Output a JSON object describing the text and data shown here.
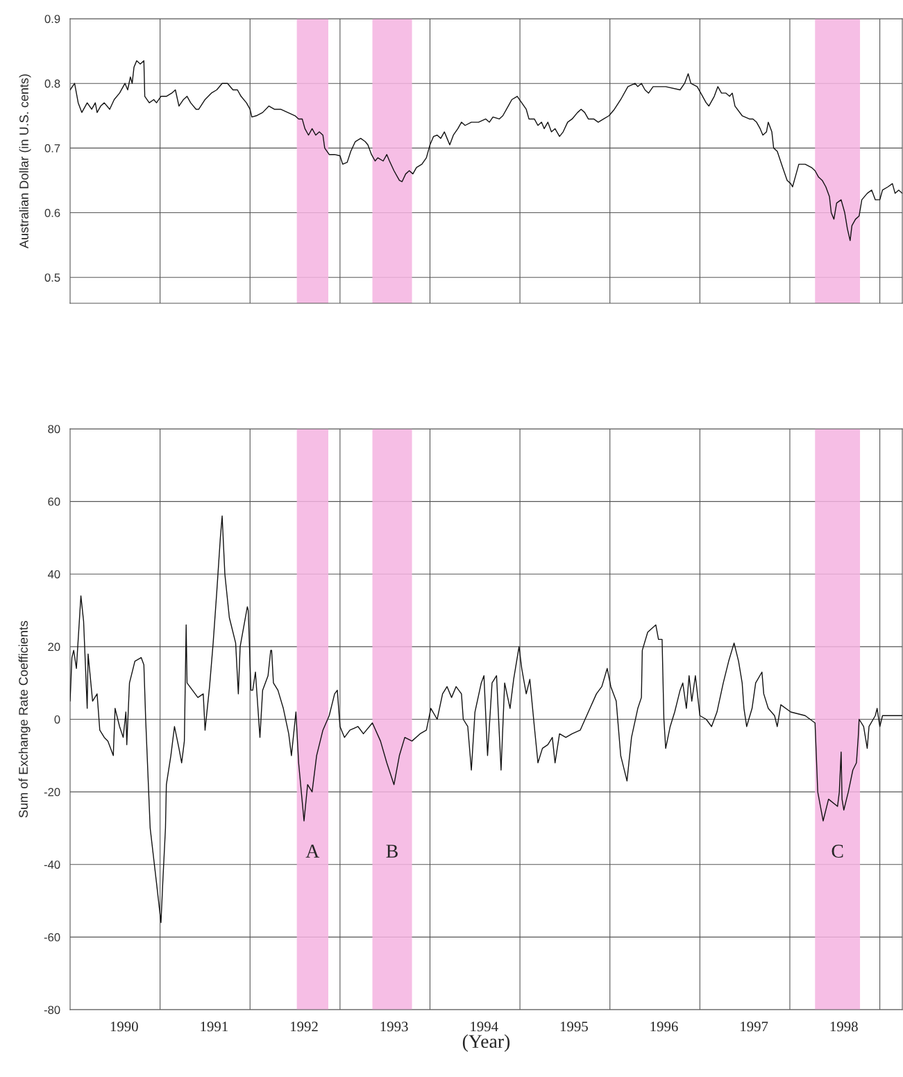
{
  "chart_data": [
    {
      "type": "line",
      "ylabel": "Australian Dollar (in U.S. cents)",
      "x": [
        1989.4,
        1989.45,
        1989.49,
        1989.53,
        1989.59,
        1989.64,
        1989.68,
        1989.7,
        1989.74,
        1989.78,
        1989.84,
        1989.89,
        1989.95,
        1990.01,
        1990.04,
        1990.07,
        1990.09,
        1990.11,
        1990.14,
        1990.18,
        1990.22,
        1990.23,
        1990.28,
        1990.33,
        1990.36,
        1990.41,
        1990.47,
        1990.53,
        1990.57,
        1990.61,
        1990.66,
        1990.7,
        1990.74,
        1990.8,
        1990.83,
        1990.9,
        1990.97,
        1991.03,
        1991.09,
        1991.15,
        1991.21,
        1991.26,
        1991.3,
        1991.36,
        1991.4,
        1991.42,
        1991.47,
        1991.54,
        1991.61,
        1991.67,
        1991.74,
        1991.82,
        1991.9,
        1991.94,
        1991.98,
        1992.01,
        1992.05,
        1992.09,
        1992.13,
        1992.17,
        1992.21,
        1992.23,
        1992.28,
        1992.34,
        1992.4,
        1992.43,
        1992.48,
        1992.52,
        1992.57,
        1992.63,
        1992.68,
        1992.71,
        1992.75,
        1992.79,
        1992.82,
        1992.88,
        1992.92,
        1992.95,
        1993.0,
        1993.06,
        1993.09,
        1993.13,
        1993.17,
        1993.21,
        1993.25,
        1993.31,
        1993.36,
        1993.4,
        1993.44,
        1993.48,
        1993.52,
        1993.56,
        1993.59,
        1993.62,
        1993.66,
        1993.71,
        1993.75,
        1993.79,
        1993.86,
        1993.94,
        1994.02,
        1994.06,
        1994.1,
        1994.17,
        1994.21,
        1994.27,
        1994.31,
        1994.37,
        1994.42,
        1994.47,
        1994.5,
        1994.56,
        1994.6,
        1994.64,
        1994.67,
        1994.71,
        1994.75,
        1994.79,
        1994.84,
        1994.88,
        1994.93,
        1994.98,
        1995.04,
        1995.08,
        1995.12,
        1995.16,
        1995.22,
        1995.27,
        1995.33,
        1995.39,
        1995.45,
        1995.52,
        1995.6,
        1995.68,
        1995.71,
        1995.75,
        1995.79,
        1995.83,
        1995.88,
        1995.95,
        1996.02,
        1996.18,
        1996.23,
        1996.27,
        1996.3,
        1996.37,
        1996.41,
        1996.47,
        1996.5,
        1996.56,
        1996.6,
        1996.64,
        1996.69,
        1996.73,
        1996.76,
        1996.79,
        1996.87,
        1996.95,
        1996.99,
        1997.03,
        1997.07,
        1997.1,
        1997.14,
        1997.16,
        1997.2,
        1997.22,
        1997.26,
        1997.32,
        1997.37,
        1997.41,
        1997.43,
        1997.47,
        1997.5,
        1997.57,
        1997.64,
        1997.68,
        1997.72,
        1997.76,
        1997.8,
        1997.84,
        1997.86,
        1997.89,
        1997.92,
        1997.97,
        1998.01,
        1998.04,
        1998.07,
        1998.09,
        1998.13,
        1998.17,
        1998.2,
        1998.26,
        1998.31,
        1998.35,
        1998.4,
        1998.43,
        1998.49,
        1998.54,
        1998.57,
        1998.61,
        1998.65
      ],
      "series": [
        {
          "color": "#111111",
          "values": [
            0.79,
            0.8,
            0.77,
            0.755,
            0.77,
            0.76,
            0.77,
            0.755,
            0.765,
            0.77,
            0.76,
            0.775,
            0.785,
            0.8,
            0.79,
            0.81,
            0.8,
            0.825,
            0.835,
            0.83,
            0.835,
            0.78,
            0.77,
            0.775,
            0.77,
            0.78,
            0.78,
            0.785,
            0.79,
            0.765,
            0.775,
            0.78,
            0.77,
            0.76,
            0.76,
            0.775,
            0.785,
            0.79,
            0.8,
            0.8,
            0.79,
            0.79,
            0.78,
            0.77,
            0.76,
            0.748,
            0.75,
            0.755,
            0.765,
            0.76,
            0.76,
            0.755,
            0.75,
            0.745,
            0.745,
            0.73,
            0.72,
            0.73,
            0.72,
            0.725,
            0.72,
            0.7,
            0.69,
            0.69,
            0.688,
            0.675,
            0.678,
            0.695,
            0.71,
            0.715,
            0.71,
            0.705,
            0.69,
            0.68,
            0.685,
            0.68,
            0.69,
            0.68,
            0.665,
            0.65,
            0.648,
            0.66,
            0.665,
            0.66,
            0.67,
            0.675,
            0.685,
            0.705,
            0.718,
            0.72,
            0.715,
            0.725,
            0.715,
            0.705,
            0.72,
            0.73,
            0.74,
            0.735,
            0.74,
            0.74,
            0.745,
            0.74,
            0.748,
            0.745,
            0.75,
            0.765,
            0.775,
            0.78,
            0.77,
            0.76,
            0.745,
            0.745,
            0.735,
            0.74,
            0.73,
            0.74,
            0.725,
            0.73,
            0.718,
            0.725,
            0.74,
            0.745,
            0.755,
            0.76,
            0.755,
            0.745,
            0.745,
            0.74,
            0.745,
            0.75,
            0.76,
            0.775,
            0.795,
            0.8,
            0.795,
            0.8,
            0.79,
            0.785,
            0.795,
            0.795,
            0.795,
            0.79,
            0.8,
            0.815,
            0.8,
            0.795,
            0.785,
            0.77,
            0.765,
            0.78,
            0.795,
            0.785,
            0.785,
            0.78,
            0.785,
            0.765,
            0.75,
            0.745,
            0.745,
            0.74,
            0.73,
            0.72,
            0.725,
            0.74,
            0.725,
            0.7,
            0.695,
            0.67,
            0.65,
            0.645,
            0.64,
            0.66,
            0.675,
            0.675,
            0.67,
            0.665,
            0.655,
            0.65,
            0.64,
            0.625,
            0.6,
            0.59,
            0.615,
            0.62,
            0.6,
            0.575,
            0.557,
            0.58,
            0.59,
            0.595,
            0.62,
            0.63,
            0.635,
            0.62,
            0.62,
            0.635,
            0.64,
            0.645,
            0.63,
            0.635,
            0.63
          ]
        }
      ],
      "xlim": [
        1989.4,
        1998.65
      ],
      "xticks": [
        1990,
        {
          "value": 1990.4,
          "label": null
        },
        1991,
        {
          "value": 1991.4,
          "label": null
        },
        1992,
        {
          "value": 1992.4,
          "label": null
        },
        1993,
        {
          "value": 1993.4,
          "label": null
        },
        1994,
        {
          "value": 1994.4,
          "label": null
        },
        1995,
        {
          "value": 1995.4,
          "label": null
        },
        1996,
        {
          "value": 1996.4,
          "label": null
        },
        1997,
        {
          "value": 1997.4,
          "label": null
        },
        1998,
        {
          "value": 1998.4,
          "label": null
        }
      ],
      "ylim": [
        0.46,
        0.9
      ],
      "yticks": [
        0.5,
        0.6,
        0.7,
        0.8,
        0.9
      ],
      "grid": true,
      "tick_labels": "y",
      "bands": [
        {
          "axis": "x",
          "from": 1991.92,
          "to": 1992.27,
          "color": "#f5b3e0"
        },
        {
          "axis": "x",
          "from": 1992.76,
          "to": 1993.2,
          "color": "#f5b3e0"
        },
        {
          "axis": "x",
          "from": 1997.68,
          "to": 1998.18,
          "color": "#f5b3e0"
        }
      ]
    },
    {
      "type": "line",
      "ylabel": "Sum of Exchange Rate Coefficients",
      "xlabel": "(Year)",
      "x": [
        1989.4,
        1989.42,
        1989.44,
        1989.47,
        1989.52,
        1989.55,
        1989.59,
        1989.6,
        1989.65,
        1989.7,
        1989.73,
        1989.78,
        1989.82,
        1989.88,
        1989.9,
        1989.95,
        1989.99,
        1990.02,
        1990.03,
        1990.06,
        1990.12,
        1990.19,
        1990.22,
        1990.24,
        1990.29,
        1990.36,
        1990.41,
        1990.43,
        1990.46,
        1990.47,
        1990.52,
        1990.56,
        1990.61,
        1990.64,
        1990.67,
        1990.69,
        1990.7,
        1990.76,
        1990.82,
        1990.88,
        1990.9,
        1990.95,
        1990.99,
        1991.03,
        1991.07,
        1991.09,
        1991.12,
        1991.17,
        1991.24,
        1991.27,
        1991.29,
        1991.37,
        1991.38,
        1991.41,
        1991.43,
        1991.46,
        1991.51,
        1991.54,
        1991.6,
        1991.63,
        1991.64,
        1991.66,
        1991.71,
        1991.77,
        1991.83,
        1991.86,
        1991.91,
        1991.94,
        1992.0,
        1992.04,
        1992.09,
        1992.14,
        1992.21,
        1992.28,
        1992.34,
        1992.37,
        1992.4,
        1992.45,
        1992.51,
        1992.6,
        1992.66,
        1992.76,
        1992.85,
        1992.92,
        1993.0,
        1993.06,
        1993.12,
        1993.2,
        1993.29,
        1993.36,
        1993.41,
        1993.48,
        1993.54,
        1993.59,
        1993.64,
        1993.69,
        1993.75,
        1993.77,
        1993.82,
        1993.86,
        1993.9,
        1993.97,
        1994.0,
        1994.04,
        1994.09,
        1994.14,
        1994.19,
        1994.23,
        1994.29,
        1994.33,
        1994.39,
        1994.42,
        1994.47,
        1994.51,
        1994.56,
        1994.6,
        1994.65,
        1994.71,
        1994.76,
        1994.79,
        1994.84,
        1994.91,
        1994.98,
        1995.07,
        1995.16,
        1995.25,
        1995.31,
        1995.37,
        1995.41,
        1995.47,
        1995.52,
        1995.59,
        1995.64,
        1995.71,
        1995.75,
        1995.76,
        1995.82,
        1995.91,
        1995.94,
        1995.98,
        1996.0,
        1996.02,
        1996.07,
        1996.12,
        1996.18,
        1996.21,
        1996.25,
        1996.28,
        1996.31,
        1996.35,
        1996.4,
        1996.47,
        1996.53,
        1996.59,
        1996.66,
        1996.72,
        1996.78,
        1996.83,
        1996.87,
        1996.89,
        1996.92,
        1996.98,
        1997.02,
        1997.09,
        1997.11,
        1997.16,
        1997.23,
        1997.26,
        1997.3,
        1997.41,
        1997.57,
        1997.68,
        1997.71,
        1997.77,
        1997.83,
        1997.93,
        1997.95,
        1997.97,
        1997.98,
        1998.0,
        1998.05,
        1998.1,
        1998.14,
        1998.16,
        1998.17,
        1998.22,
        1998.26,
        1998.28,
        1998.35,
        1998.37,
        1998.4,
        1998.43,
        1998.65
      ],
      "series": [
        {
          "color": "#111111",
          "values": [
            5,
            17,
            19,
            14,
            34,
            27,
            3,
            18,
            5,
            7,
            -3,
            -5,
            -6,
            -10,
            3,
            -2,
            -5,
            2,
            -7,
            10,
            16,
            17,
            15,
            0,
            -30,
            -45,
            -56,
            -45,
            -30,
            -18,
            -10,
            -2,
            -8,
            -12,
            -6,
            26,
            10,
            8,
            6,
            7,
            -3,
            9,
            21,
            35,
            50,
            56,
            40,
            28,
            21,
            7,
            20,
            31,
            30,
            8,
            8,
            13,
            -5,
            8,
            12,
            19,
            19,
            10,
            8,
            3,
            -4,
            -10,
            2,
            -12,
            -28,
            -18,
            -20,
            -10,
            -3,
            1,
            7,
            8,
            -2,
            -5,
            -3,
            -2,
            -4,
            -1,
            -6,
            -12,
            -18,
            -10,
            -5,
            -6,
            -4,
            -3,
            3,
            0,
            7,
            9,
            6,
            9,
            7,
            0,
            -2,
            -14,
            2,
            10,
            12,
            -10,
            10,
            12,
            -14,
            10,
            3,
            11,
            20,
            14,
            7,
            11,
            -2,
            -12,
            -8,
            -7,
            -5,
            -12,
            -4,
            -5,
            -4,
            -3,
            2,
            7,
            9,
            14,
            9,
            5,
            -10,
            -17,
            -5,
            3,
            6,
            19,
            24,
            26,
            22,
            22,
            0,
            -8,
            -2,
            2,
            8,
            10,
            3,
            12,
            5,
            12,
            1,
            0,
            -2,
            2,
            10,
            16,
            21,
            16,
            10,
            3,
            -2,
            3,
            10,
            13,
            7,
            3,
            1,
            -2,
            4,
            2,
            1,
            -1,
            -20,
            -28,
            -22,
            -24,
            -20,
            -9,
            -22,
            -25,
            -20,
            -14,
            -12,
            -5,
            0,
            -2,
            -8,
            -2,
            1,
            3,
            -2,
            1,
            1
          ]
        }
      ],
      "xlim": [
        1989.4,
        1998.65
      ],
      "xticks": [
        1990,
        {
          "value": 1990.4,
          "label": null
        },
        1991,
        {
          "value": 1991.4,
          "label": null
        },
        1992,
        {
          "value": 1992.4,
          "label": null
        },
        1993,
        {
          "value": 1993.4,
          "label": null
        },
        1994,
        {
          "value": 1994.4,
          "label": null
        },
        1995,
        {
          "value": 1995.4,
          "label": null
        },
        1996,
        {
          "value": 1996.4,
          "label": null
        },
        1997,
        {
          "value": 1997.4,
          "label": null
        },
        1998,
        {
          "value": 1998.4,
          "label": null
        }
      ],
      "ylim": [
        -80,
        80
      ],
      "yticks": [
        -80,
        -60,
        -40,
        -20,
        0,
        20,
        40,
        60,
        80
      ],
      "grid": true,
      "bands": [
        {
          "axis": "x",
          "from": 1991.92,
          "to": 1992.27,
          "color": "#f5b3e0",
          "label": "A"
        },
        {
          "axis": "x",
          "from": 1992.76,
          "to": 1993.2,
          "color": "#f5b3e0",
          "label": "B"
        },
        {
          "axis": "x",
          "from": 1997.68,
          "to": 1998.18,
          "color": "#f5b3e0",
          "label": "C"
        }
      ]
    }
  ]
}
